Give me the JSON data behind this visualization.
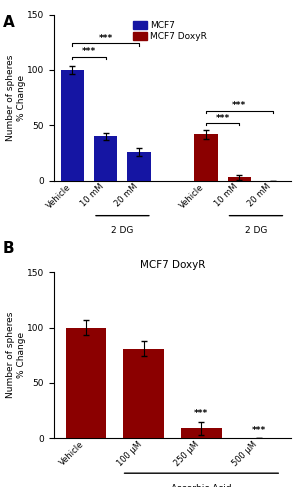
{
  "panel_A": {
    "ylabel": "Number of spheres\n% Change",
    "ylim": [
      0,
      150
    ],
    "yticks": [
      0,
      50,
      100,
      150
    ],
    "blue_color": "#1515A3",
    "red_color": "#8B0000",
    "mcf7_values": [
      100,
      40,
      26
    ],
    "mcf7_errors": [
      4,
      3,
      4
    ],
    "doxy_values": [
      42,
      3,
      0
    ],
    "doxy_errors": [
      4,
      2,
      0
    ],
    "mcf7_labels": [
      "Vehicle",
      "10 mM",
      "20 mM"
    ],
    "doxy_labels": [
      "Vehicle",
      "10 mM",
      "20 mM"
    ],
    "legend_labels": [
      "MCF7",
      "MCF7 DoxyR"
    ]
  },
  "panel_B": {
    "title": "MCF7 DoxyR",
    "ylabel": "Number of spheres\n% Change",
    "ylim": [
      0,
      150
    ],
    "yticks": [
      0,
      50,
      100,
      150
    ],
    "red_color": "#8B0000",
    "labels": [
      "Vehicle",
      "100 μM",
      "250 μM",
      "500 μM"
    ],
    "values": [
      100,
      81,
      9,
      0
    ],
    "errors": [
      7,
      7,
      6,
      0
    ]
  }
}
